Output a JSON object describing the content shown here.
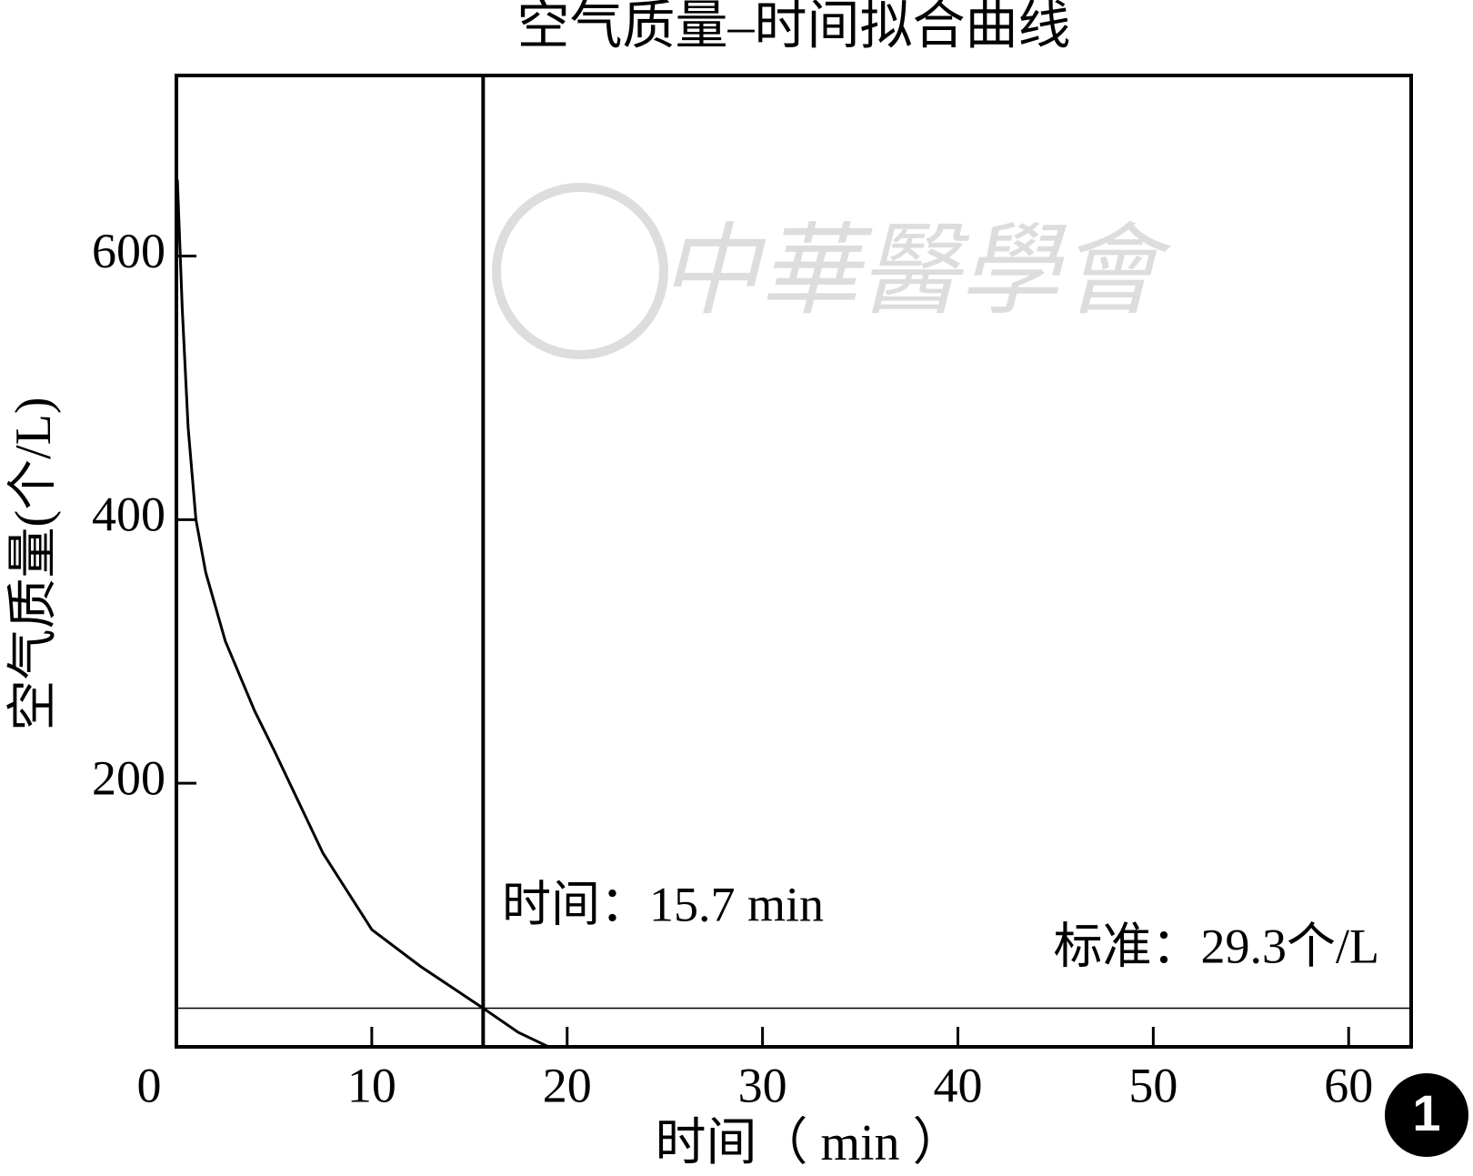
{
  "chart_data": {
    "type": "line",
    "title": "空气质量–时间拟合曲线",
    "x_label": "时间（ min ）",
    "y_label": "空气质量(个/L)",
    "x": [
      0.05,
      0.3,
      0.6,
      1,
      1.5,
      2.5,
      4,
      5,
      7.5,
      10,
      12.5,
      15.7,
      17.5,
      19.05
    ],
    "series": [
      {
        "name": "空气质量",
        "color": "#000000",
        "values": [
          658,
          560,
          470,
          400,
          360,
          308,
          255,
          225,
          147,
          89,
          61,
          29.3,
          11,
          0
        ]
      }
    ],
    "xlim": [
      0,
      63.2
    ],
    "ylim": [
      0,
      737
    ],
    "xticks": [
      0,
      10,
      20,
      30,
      40,
      50,
      60
    ],
    "yticks": [
      200,
      400,
      600
    ],
    "grid": false,
    "vline": 15.7,
    "hline": 29.3,
    "annotations": [
      "时间：15.7 min",
      "标准：29.3个/L"
    ],
    "watermark": "中華醫學會",
    "figure_number": "1"
  }
}
